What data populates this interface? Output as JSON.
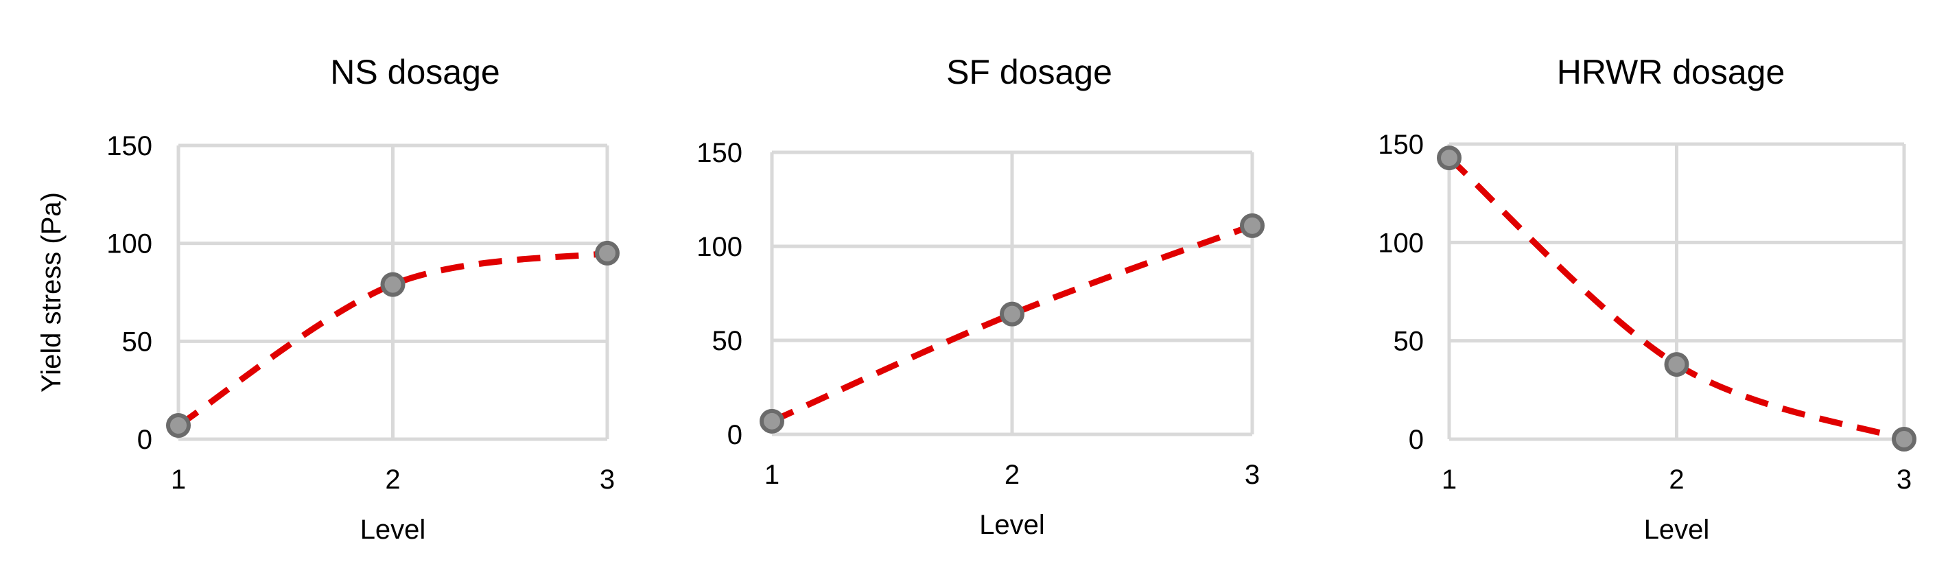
{
  "colors": {
    "line": "#e00000",
    "marker_fill": "#9a9a9a",
    "marker_stroke": "#6b6b6b",
    "grid": "#d9d9d9"
  },
  "chart_data": [
    {
      "type": "line",
      "title": "NS dosage",
      "xlabel": "Level",
      "ylabel": "Yield  stress (Pa)",
      "x": [
        1,
        2,
        3
      ],
      "values": [
        7,
        79,
        95
      ],
      "xlim": [
        1,
        3
      ],
      "ylim": [
        0,
        150
      ],
      "xticks": [
        "1",
        "2",
        "3"
      ],
      "yticks": [
        "0",
        "50",
        "100",
        "150"
      ],
      "line_style": "dashed-smooth",
      "grid": true
    },
    {
      "type": "line",
      "title": "SF dosage",
      "xlabel": "Level",
      "ylabel": "",
      "x": [
        1,
        2,
        3
      ],
      "values": [
        7,
        64,
        111
      ],
      "xlim": [
        1,
        3
      ],
      "ylim": [
        0,
        150
      ],
      "xticks": [
        "1",
        "2",
        "3"
      ],
      "yticks": [
        "0",
        "50",
        "100",
        "150"
      ],
      "line_style": "dashed-smooth",
      "grid": true
    },
    {
      "type": "line",
      "title": "HRWR dosage",
      "xlabel": "Level",
      "ylabel": "",
      "x": [
        1,
        2,
        3
      ],
      "values": [
        143,
        38,
        0
      ],
      "xlim": [
        1,
        3
      ],
      "ylim": [
        0,
        150
      ],
      "xticks": [
        "1",
        "2",
        "3"
      ],
      "yticks": [
        "0",
        "50",
        "100",
        "150"
      ],
      "line_style": "dashed-smooth",
      "grid": true
    }
  ]
}
